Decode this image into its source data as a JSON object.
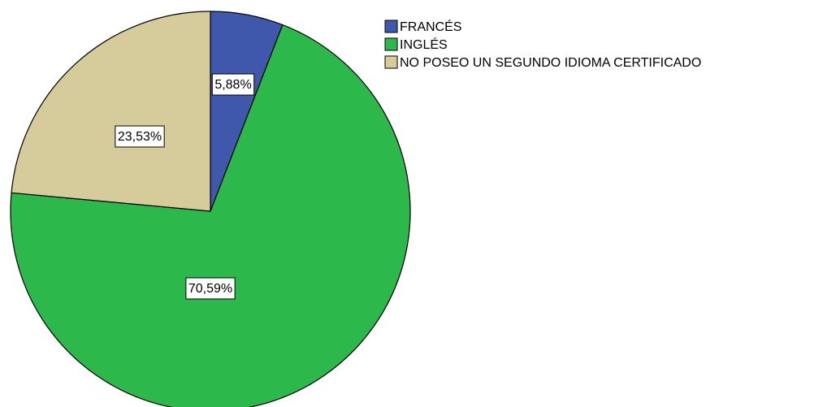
{
  "chart_data": {
    "type": "pie",
    "categories": [
      "FRANCÉS",
      "INGLÉS",
      "NO POSEO UN SEGUNDO IDIOMA CERTIFICADO"
    ],
    "values": [
      5.88,
      70.59,
      23.53
    ],
    "value_labels": [
      "5,88%",
      "70,59%",
      "23,53%"
    ],
    "colors": [
      "#3f58ab",
      "#2db84b",
      "#d6cc9b"
    ],
    "legend": "top-right"
  }
}
